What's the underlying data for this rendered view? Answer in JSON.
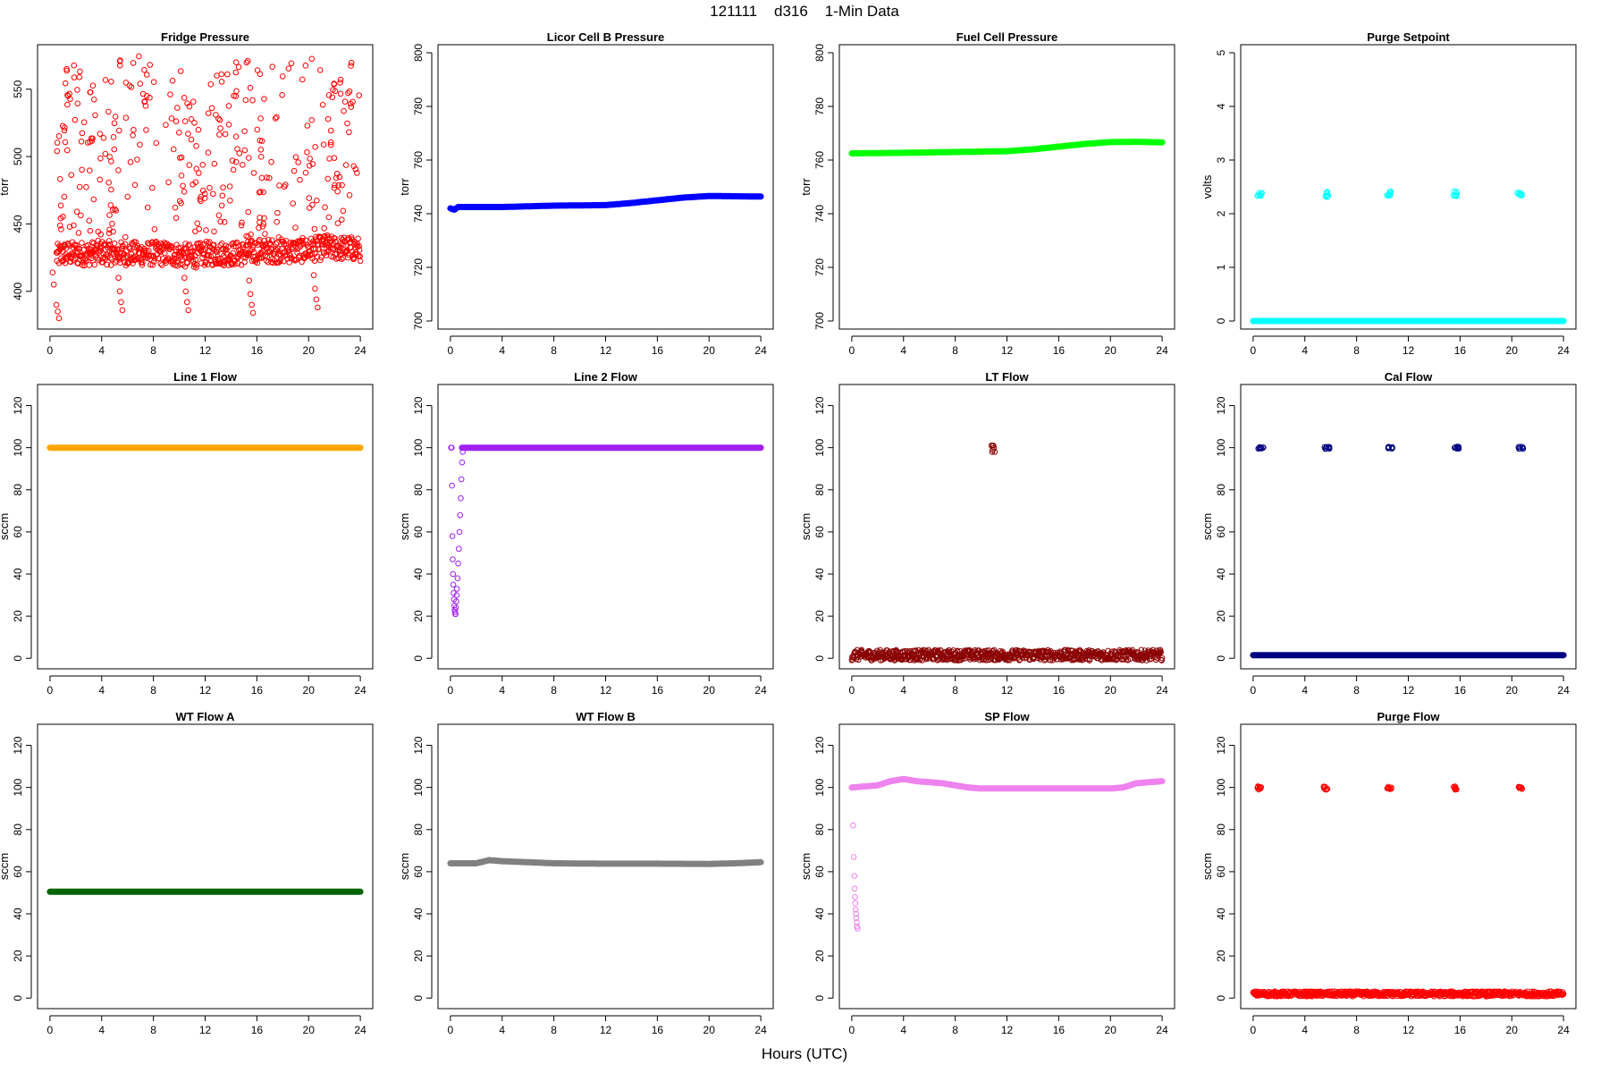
{
  "title": "121111    d316    1-Min Data",
  "chart_data": {
    "title": "121111    d316    1-Min Data",
    "xlabel": "Hours (UTC)",
    "x_ticks": [
      0,
      4,
      8,
      12,
      16,
      20,
      24
    ],
    "xlim": [
      0,
      24
    ],
    "panels": [
      {
        "type": "scatter",
        "title": "Fridge Pressure",
        "ylabel": "torr",
        "color": "#ff0000",
        "ylim": [
          372,
          583
        ],
        "y_ticks": [
          400,
          450,
          500,
          550
        ],
        "series": [
          {
            "kind": "band",
            "values": [
              [
                0.5,
                426
              ],
              [
                1.0,
                428
              ],
              [
                2.0,
                428
              ],
              [
                3.0,
                428
              ],
              [
                4.0,
                429
              ],
              [
                5.0,
                428
              ],
              [
                6.0,
                428
              ],
              [
                7.0,
                428
              ],
              [
                8.0,
                428
              ],
              [
                9.0,
                428
              ],
              [
                10.0,
                427
              ],
              [
                11.0,
                426
              ],
              [
                12.0,
                428
              ],
              [
                13.0,
                428
              ],
              [
                14.0,
                428
              ],
              [
                15.0,
                428
              ],
              [
                16.0,
                430
              ],
              [
                17.0,
                430
              ],
              [
                18.0,
                430
              ],
              [
                19.0,
                430
              ],
              [
                20.0,
                431
              ],
              [
                21.0,
                432
              ],
              [
                22.0,
                432
              ],
              [
                23.0,
                432
              ],
              [
                24.0,
                431
              ]
            ],
            "spread": 9
          },
          {
            "kind": "dips",
            "values": [
              [
                0.2,
                414
              ],
              [
                0.3,
                405
              ],
              [
                0.5,
                390
              ],
              [
                0.6,
                385
              ],
              [
                0.7,
                380
              ],
              [
                5.3,
                410
              ],
              [
                5.4,
                400
              ],
              [
                5.5,
                392
              ],
              [
                5.6,
                386
              ],
              [
                10.4,
                410
              ],
              [
                10.5,
                400
              ],
              [
                10.6,
                392
              ],
              [
                10.7,
                386
              ],
              [
                15.4,
                408
              ],
              [
                15.5,
                398
              ],
              [
                15.6,
                390
              ],
              [
                15.7,
                384
              ],
              [
                20.4,
                412
              ],
              [
                20.5,
                402
              ],
              [
                20.6,
                394
              ],
              [
                20.7,
                388
              ]
            ]
          },
          {
            "kind": "scatter-random",
            "x_range": [
              0.5,
              24
            ],
            "y_range": [
              440,
              575
            ],
            "count": 330
          }
        ]
      },
      {
        "type": "line",
        "title": "Licor Cell B Pressure",
        "ylabel": "torr",
        "color": "#0000ff",
        "ylim": [
          697,
          803
        ],
        "y_ticks": [
          700,
          720,
          740,
          760,
          780,
          800
        ],
        "series": [
          {
            "kind": "line",
            "values": [
              [
                0,
                742
              ],
              [
                0.3,
                741.5
              ],
              [
                0.6,
                742.5
              ],
              [
                4,
                742.5
              ],
              [
                8,
                743
              ],
              [
                12,
                743.2
              ],
              [
                14,
                744
              ],
              [
                16,
                745
              ],
              [
                18,
                746
              ],
              [
                20,
                746.6
              ],
              [
                22,
                746.5
              ],
              [
                24,
                746.4
              ]
            ]
          }
        ]
      },
      {
        "type": "line",
        "title": "Fuel Cell Pressure",
        "ylabel": "torr",
        "color": "#00ff00",
        "ylim": [
          697,
          803
        ],
        "y_ticks": [
          700,
          720,
          740,
          760,
          780,
          800
        ],
        "series": [
          {
            "kind": "line",
            "values": [
              [
                0,
                762.5
              ],
              [
                4,
                762.7
              ],
              [
                8,
                763
              ],
              [
                12,
                763.3
              ],
              [
                14,
                764
              ],
              [
                16,
                765
              ],
              [
                18,
                766
              ],
              [
                20,
                766.7
              ],
              [
                22,
                766.8
              ],
              [
                24,
                766.6
              ]
            ]
          }
        ]
      },
      {
        "type": "scatter",
        "title": "Purge Setpoint",
        "ylabel": "volts",
        "color": "#00ffff",
        "ylim": [
          -0.15,
          5.15
        ],
        "y_ticks": [
          0,
          1,
          2,
          3,
          4,
          5
        ],
        "series": [
          {
            "kind": "line",
            "values": [
              [
                0,
                0
              ],
              [
                24,
                0
              ]
            ]
          },
          {
            "kind": "clusters",
            "centers": [
              0.5,
              5.6,
              10.5,
              15.6,
              20.6
            ],
            "values": [
              2.35,
              2.4,
              2.33
            ]
          }
        ]
      },
      {
        "type": "line",
        "title": "Line 1 Flow",
        "ylabel": "sccm",
        "color": "#ffa500",
        "ylim": [
          -5,
          130
        ],
        "y_ticks": [
          0,
          20,
          40,
          60,
          80,
          100,
          120
        ],
        "series": [
          {
            "kind": "line",
            "values": [
              [
                0,
                100
              ],
              [
                24,
                100
              ]
            ]
          }
        ]
      },
      {
        "type": "scatter",
        "title": "Line 2 Flow",
        "ylabel": "sccm",
        "color": "#a020f0",
        "ylim": [
          -5,
          130
        ],
        "y_ticks": [
          0,
          20,
          40,
          60,
          80,
          100,
          120
        ],
        "series": [
          {
            "kind": "line",
            "values": [
              [
                0.9,
                100
              ],
              [
                24,
                100
              ]
            ]
          },
          {
            "kind": "points",
            "values": [
              [
                0.05,
                100
              ],
              [
                0.1,
                100
              ],
              [
                0.12,
                82
              ],
              [
                0.15,
                58
              ],
              [
                0.18,
                47
              ],
              [
                0.2,
                40
              ],
              [
                0.22,
                35
              ],
              [
                0.25,
                31
              ],
              [
                0.28,
                28
              ],
              [
                0.3,
                25
              ],
              [
                0.33,
                23
              ],
              [
                0.35,
                22
              ],
              [
                0.38,
                21
              ],
              [
                0.4,
                21
              ],
              [
                0.42,
                24
              ],
              [
                0.45,
                27
              ],
              [
                0.48,
                30
              ],
              [
                0.5,
                33
              ],
              [
                0.55,
                38
              ],
              [
                0.6,
                45
              ],
              [
                0.65,
                52
              ],
              [
                0.7,
                60
              ],
              [
                0.75,
                68
              ],
              [
                0.8,
                76
              ],
              [
                0.85,
                85
              ],
              [
                0.9,
                93
              ],
              [
                0.95,
                98
              ]
            ]
          }
        ]
      },
      {
        "type": "scatter",
        "title": "LT Flow",
        "ylabel": "sccm",
        "color": "#8b0000",
        "ylim": [
          -5,
          130
        ],
        "y_ticks": [
          0,
          20,
          40,
          60,
          80,
          100,
          120
        ],
        "series": [
          {
            "kind": "band",
            "values": [
              [
                0,
                1.5
              ],
              [
                24,
                1.5
              ]
            ],
            "spread": 2.5
          },
          {
            "kind": "points",
            "values": [
              [
                10.8,
                101
              ],
              [
                10.9,
                99
              ],
              [
                11.0,
                100
              ],
              [
                10.85,
                98
              ],
              [
                10.95,
                101
              ],
              [
                11.05,
                98
              ],
              [
                10.9,
                101
              ]
            ]
          }
        ]
      },
      {
        "type": "scatter",
        "title": "Cal Flow",
        "ylabel": "sccm",
        "color": "#000080",
        "ylim": [
          -5,
          130
        ],
        "y_ticks": [
          0,
          20,
          40,
          60,
          80,
          100,
          120
        ],
        "series": [
          {
            "kind": "line",
            "values": [
              [
                0,
                1.5
              ],
              [
                24,
                1.5
              ]
            ]
          },
          {
            "kind": "clusters",
            "centers": [
              0.6,
              5.7,
              10.6,
              15.7,
              20.7
            ],
            "values": [
              100
            ]
          }
        ]
      },
      {
        "type": "line",
        "title": "WT Flow A",
        "ylabel": "sccm",
        "color": "#006400",
        "ylim": [
          -5,
          130
        ],
        "y_ticks": [
          0,
          20,
          40,
          60,
          80,
          100,
          120
        ],
        "series": [
          {
            "kind": "line",
            "values": [
              [
                0,
                50.5
              ],
              [
                24,
                50.5
              ]
            ]
          }
        ]
      },
      {
        "type": "line",
        "title": "WT Flow B",
        "ylabel": "sccm",
        "color": "#808080",
        "ylim": [
          -5,
          130
        ],
        "y_ticks": [
          0,
          20,
          40,
          60,
          80,
          100,
          120
        ],
        "series": [
          {
            "kind": "line",
            "values": [
              [
                0,
                64
              ],
              [
                2,
                64
              ],
              [
                3,
                65.5
              ],
              [
                4,
                65
              ],
              [
                6,
                64.5
              ],
              [
                8,
                64
              ],
              [
                12,
                63.8
              ],
              [
                16,
                63.8
              ],
              [
                20,
                63.7
              ],
              [
                22,
                64
              ],
              [
                24,
                64.5
              ]
            ]
          }
        ]
      },
      {
        "type": "scatter",
        "title": "SP Flow",
        "ylabel": "sccm",
        "color": "#ee82ee",
        "ylim": [
          -5,
          130
        ],
        "y_ticks": [
          0,
          20,
          40,
          60,
          80,
          100,
          120
        ],
        "series": [
          {
            "kind": "line",
            "values": [
              [
                0,
                100
              ],
              [
                1,
                100.5
              ],
              [
                2,
                101
              ],
              [
                3,
                103
              ],
              [
                4,
                104
              ],
              [
                5,
                103
              ],
              [
                6,
                102.5
              ],
              [
                7,
                102
              ],
              [
                8,
                101
              ],
              [
                9,
                100
              ],
              [
                10,
                99.5
              ],
              [
                12,
                99.5
              ],
              [
                14,
                99.5
              ],
              [
                16,
                99.5
              ],
              [
                18,
                99.5
              ],
              [
                20,
                99.5
              ],
              [
                21,
                100
              ],
              [
                22,
                102
              ],
              [
                24,
                103
              ]
            ]
          },
          {
            "kind": "points",
            "values": [
              [
                0.1,
                82
              ],
              [
                0.15,
                67
              ],
              [
                0.2,
                58
              ],
              [
                0.22,
                52
              ],
              [
                0.25,
                48
              ],
              [
                0.28,
                45
              ],
              [
                0.3,
                42
              ],
              [
                0.32,
                40
              ],
              [
                0.35,
                38
              ],
              [
                0.38,
                36
              ],
              [
                0.4,
                34
              ],
              [
                0.45,
                33
              ]
            ]
          }
        ]
      },
      {
        "type": "scatter",
        "title": "Purge Flow",
        "ylabel": "sccm",
        "color": "#ff0000",
        "ylim": [
          -5,
          130
        ],
        "y_ticks": [
          0,
          20,
          40,
          60,
          80,
          100,
          120
        ],
        "series": [
          {
            "kind": "band",
            "values": [
              [
                0,
                2
              ],
              [
                24,
                2
              ]
            ],
            "spread": 1.2
          },
          {
            "kind": "clusters",
            "centers": [
              0.5,
              5.6,
              10.5,
              15.6,
              20.6
            ],
            "values": [
              100,
              99.5
            ]
          }
        ]
      }
    ]
  }
}
